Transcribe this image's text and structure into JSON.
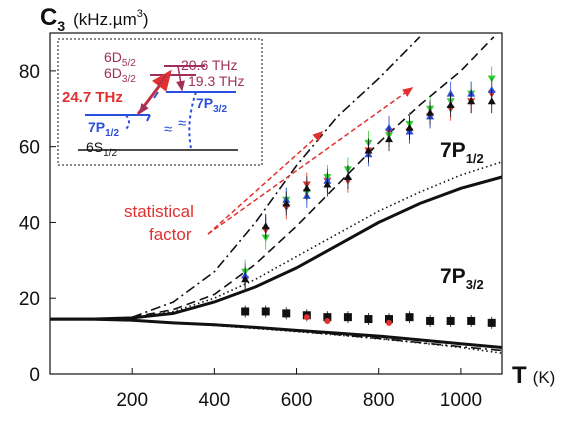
{
  "chart_data": {
    "type": "scatter",
    "ylabel_main": "C",
    "ylabel_sub": "3",
    "ylabel_unit": "(kHz.µm",
    "ylabel_unit_sup": "3",
    "ylabel_unit_close": ")",
    "xlabel_main": "T",
    "xlabel_unit": "(K)",
    "xlim": [
      0,
      1100
    ],
    "ylim": [
      0,
      90
    ],
    "x_ticks": [
      200,
      400,
      600,
      800,
      1000
    ],
    "y_ticks": [
      0,
      20,
      40,
      60,
      80
    ],
    "x_tick_labels": [
      "200",
      "400",
      "600",
      "800",
      "1000"
    ],
    "y_tick_labels": [
      "0",
      "20",
      "40",
      "60",
      "80"
    ],
    "grid": false,
    "colors": {
      "red": "#e03030",
      "green": "#33cc33",
      "blue": "#2a4fe0",
      "black": "#111111",
      "maroon": "#a0305a"
    },
    "labels": {
      "p12_main": "7P",
      "p12_sub": "1/2",
      "p32_main": "7P",
      "p32_sub": "3/2",
      "statistical_line1": "statistical",
      "statistical_line2": "factor"
    },
    "inset": {
      "d52": "6D",
      "d52_sub": "5/2",
      "d32": "6D",
      "d32_sub": "3/2",
      "f206": "20.6 THz",
      "f193": "19.3 THz",
      "f247": "24.7 THz",
      "p12": "7P",
      "p12_sub": "1/2",
      "p32": "7P",
      "p32_sub": "3/2",
      "s12": "6S",
      "s12_sub": "1/2",
      "approx": "≈"
    },
    "series": [
      {
        "name": "7P1/2 data red",
        "color": "red",
        "marker": "triangle-down",
        "x": [
          475,
          525,
          575,
          625,
          675,
          725,
          775,
          825,
          875,
          925,
          975,
          1025,
          1075
        ],
        "y": [
          25,
          38,
          44,
          50,
          51,
          51,
          59,
          64,
          64,
          68,
          70,
          72,
          74
        ]
      },
      {
        "name": "7P1/2 data green",
        "color": "green",
        "marker": "triangle-down",
        "x": [
          475,
          525,
          575,
          625,
          675,
          725,
          775,
          825,
          875,
          925,
          975,
          1025,
          1075
        ],
        "y": [
          27,
          36,
          46,
          48,
          52,
          54,
          61,
          63,
          66,
          70,
          72,
          74,
          78
        ]
      },
      {
        "name": "7P1/2 data blue",
        "color": "blue",
        "marker": "triangle-up",
        "x": [
          475,
          525,
          575,
          625,
          675,
          725,
          775,
          825,
          875,
          925,
          975,
          1025,
          1075
        ],
        "y": [
          26,
          39,
          46,
          47,
          51,
          52,
          58,
          65,
          64,
          68,
          74,
          74,
          75
        ]
      },
      {
        "name": "7P1/2 data black",
        "color": "black",
        "marker": "triangle-up",
        "x": [
          475,
          525,
          575,
          625,
          675,
          725,
          775,
          825,
          875,
          925,
          975,
          1025,
          1075
        ],
        "y": [
          25,
          39,
          45,
          49,
          50,
          52,
          59,
          62,
          65,
          69,
          71,
          72,
          72
        ]
      },
      {
        "name": "7P3/2 data",
        "color": "black",
        "marker": "square",
        "x": [
          475,
          525,
          575,
          625,
          675,
          725,
          775,
          825,
          875,
          925,
          975,
          1025,
          1075
        ],
        "y": [
          16.5,
          16.5,
          16,
          15.5,
          15,
          15,
          14.5,
          14.5,
          15,
          14,
          14,
          14,
          13.5
        ]
      },
      {
        "name": "7P3/2 data red",
        "color": "red",
        "marker": "circle",
        "x": [
          625,
          675,
          825
        ],
        "y": [
          15,
          14,
          13.5
        ]
      }
    ],
    "curves": [
      {
        "name": "solid upper",
        "style": "solid",
        "x": [
          0,
          100,
          200,
          300,
          400,
          500,
          600,
          700,
          800,
          900,
          1000,
          1100
        ],
        "y": [
          14.5,
          14.5,
          14.8,
          16,
          19,
          23,
          28,
          34,
          40,
          45,
          49,
          52
        ]
      },
      {
        "name": "solid lower",
        "style": "solid",
        "x": [
          0,
          100,
          200,
          300,
          400,
          500,
          600,
          700,
          800,
          900,
          1000,
          1100
        ],
        "y": [
          14.5,
          14.5,
          14.2,
          13.5,
          13,
          12.3,
          11.5,
          10.8,
          10,
          9,
          8,
          7
        ]
      },
      {
        "name": "dotted upper",
        "style": "dotted",
        "x": [
          200,
          300,
          400,
          500,
          600,
          700,
          800,
          900,
          1000,
          1100
        ],
        "y": [
          14.8,
          16.5,
          20,
          25,
          31,
          37,
          43,
          48,
          52.5,
          56
        ]
      },
      {
        "name": "dotted lower",
        "style": "dotted",
        "x": [
          200,
          300,
          400,
          500,
          600,
          700,
          800,
          900,
          1000,
          1100
        ],
        "y": [
          14.2,
          13.5,
          12.8,
          12,
          11.2,
          10.3,
          9.3,
          8.2,
          7,
          5.5
        ]
      },
      {
        "name": "dashed",
        "style": "dashed",
        "x": [
          200,
          300,
          400,
          500,
          600,
          700,
          800,
          900,
          1000,
          1080
        ],
        "y": [
          15,
          17,
          21,
          29,
          39,
          50,
          61,
          71,
          80,
          89
        ]
      },
      {
        "name": "dashdot",
        "style": "dashdot",
        "x": [
          200,
          300,
          400,
          500,
          600,
          700,
          800,
          900
        ],
        "y": [
          15,
          19,
          27,
          40,
          55,
          68,
          78,
          89
        ]
      },
      {
        "name": "dashdot lower",
        "style": "dashdot",
        "x": [
          200,
          300,
          400,
          500,
          600,
          700,
          800,
          900,
          1000,
          1100
        ],
        "y": [
          14.2,
          13.6,
          13,
          12.2,
          11.3,
          10.4,
          9.4,
          8.3,
          7.2,
          6.2
        ]
      }
    ]
  }
}
